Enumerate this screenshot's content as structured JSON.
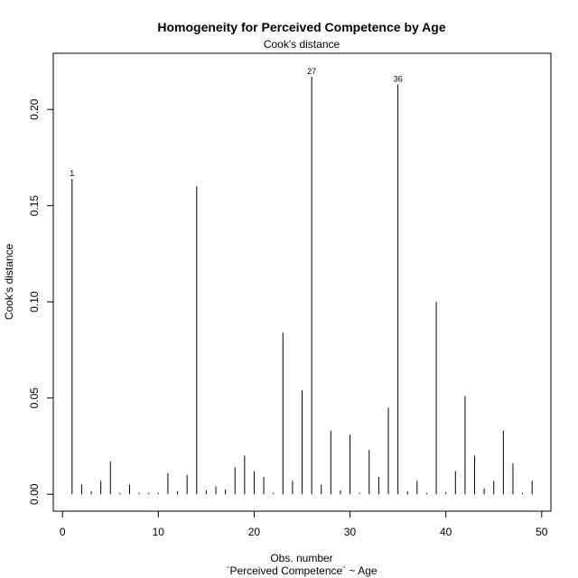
{
  "chart_data": {
    "type": "bar",
    "title": "Homogeneity for Perceived Competence by Age",
    "subtitle": "Cook's distance",
    "xlabel": "Obs. number",
    "xlabel_sub": "`Perceived Competence` ~ Age",
    "ylabel": "Cook's distance",
    "xlim": [
      -0.96,
      50.96
    ],
    "ylim": [
      -0.0088,
      0.2292
    ],
    "x_ticks": [
      0,
      10,
      20,
      30,
      40,
      50
    ],
    "y_ticks": [
      0.0,
      0.05,
      0.1,
      0.15,
      0.2
    ],
    "y_tick_labels": [
      "0.00",
      "0.05",
      "0.10",
      "0.15",
      "0.20"
    ],
    "x": [
      1,
      2,
      3,
      4,
      5,
      6,
      7,
      8,
      9,
      10,
      11,
      12,
      13,
      14,
      15,
      16,
      17,
      18,
      19,
      20,
      21,
      22,
      23,
      24,
      25,
      26,
      27,
      28,
      29,
      30,
      31,
      32,
      33,
      34,
      35,
      36,
      37,
      38,
      39,
      40,
      41,
      42,
      43,
      44,
      45,
      46,
      47,
      48,
      49
    ],
    "values": [
      0.164,
      0.005,
      0.0015,
      0.007,
      0.017,
      0.0007,
      0.005,
      0.0007,
      0.0007,
      0.0007,
      0.011,
      0.0015,
      0.01,
      0.16,
      0.002,
      0.004,
      0.0025,
      0.014,
      0.02,
      0.012,
      0.009,
      0.0007,
      0.084,
      0.007,
      0.054,
      0.217,
      0.005,
      0.033,
      0.002,
      0.031,
      0.0007,
      0.023,
      0.009,
      0.045,
      0.213,
      0.0015,
      0.007,
      0.0007,
      0.1,
      0.001,
      0.012,
      0.051,
      0.02,
      0.003,
      0.007,
      0.033,
      0.016,
      0.0007,
      0.007
    ],
    "point_labels": [
      {
        "x": 1,
        "label": "1"
      },
      {
        "x": 26,
        "label": "27"
      },
      {
        "x": 35,
        "label": "36"
      }
    ]
  }
}
